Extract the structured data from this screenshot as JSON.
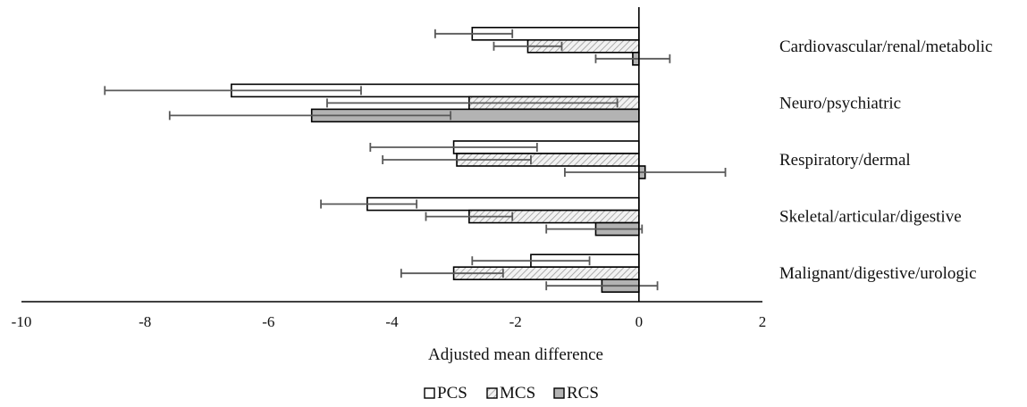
{
  "chart_data": {
    "type": "bar",
    "orientation": "horizontal",
    "categories": [
      "Cardiovascular/renal/metabolic",
      "Neuro/psychiatric",
      "Respiratory/dermal",
      "Skeletal/articular/digestive",
      "Malignant/digestive/urologic"
    ],
    "series": [
      {
        "name": "PCS",
        "fill": "#ffffff",
        "pattern": "none",
        "values": [
          -2.7,
          -6.6,
          -3.0,
          -4.4,
          -1.75
        ],
        "error_low": [
          -3.3,
          -8.65,
          -4.35,
          -5.15,
          -2.7
        ],
        "error_high": [
          -2.05,
          -4.5,
          -1.65,
          -3.6,
          -0.8
        ]
      },
      {
        "name": "MCS",
        "fill": "#e6e6e6",
        "pattern": "diagonal-hatch",
        "values": [
          -1.8,
          -2.75,
          -2.95,
          -2.75,
          -3.0
        ],
        "error_low": [
          -2.35,
          -5.05,
          -4.15,
          -3.45,
          -3.85
        ],
        "error_high": [
          -1.25,
          -0.35,
          -1.75,
          -2.05,
          -2.2
        ]
      },
      {
        "name": "RCS",
        "fill": "#b3b3b3",
        "pattern": "none",
        "values": [
          -0.1,
          -5.3,
          0.1,
          -0.7,
          -0.6
        ],
        "error_low": [
          -0.7,
          -7.6,
          -1.2,
          -1.5,
          -1.5
        ],
        "error_high": [
          0.5,
          -3.05,
          1.4,
          0.05,
          0.3
        ]
      }
    ],
    "xlabel": "Adjusted mean difference",
    "xlim": [
      -10,
      2
    ],
    "xticks": [
      "-10",
      "-8",
      "-6",
      "-4",
      "-2",
      "0",
      "2"
    ],
    "grid": false,
    "legend_position": "bottom",
    "legend_entries": [
      "PCS",
      "MCS",
      "RCS"
    ],
    "colors": {
      "bar_stroke": "#000000",
      "errorbar": "#595959",
      "axis": "#000000"
    }
  }
}
